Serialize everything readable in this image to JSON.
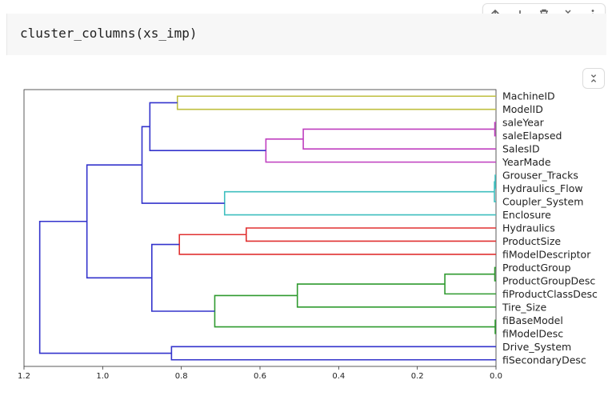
{
  "toolbar": {
    "icons": [
      "arrow-up-icon",
      "arrow-down-icon",
      "trash-icon",
      "collapse-icon",
      "more-vert-icon"
    ]
  },
  "code_cell": {
    "source": "cluster_columns(xs_imp)"
  },
  "chart_data": {
    "type": "dendrogram",
    "orientation": "left",
    "xlim": [
      1.2,
      0.0
    ],
    "xticks": [
      "1.2",
      "1.0",
      "0.8",
      "0.6",
      "0.4",
      "0.2",
      "0.0"
    ],
    "xtick_values": [
      1.2,
      1.0,
      0.8,
      0.6,
      0.4,
      0.2,
      0.0
    ],
    "leaves": [
      "MachineID",
      "ModelID",
      "saleYear",
      "saleElapsed",
      "SalesID",
      "YearMade",
      "Grouser_Tracks",
      "Hydraulics_Flow",
      "Coupler_System",
      "Enclosure",
      "Hydraulics",
      "ProductSize",
      "fiModelDescriptor",
      "ProductGroup",
      "ProductGroupDesc",
      "fiProductClassDesc",
      "Tire_Size",
      "fiBaseModel",
      "fiModelDesc",
      "Drive_System",
      "fiSecondaryDesc"
    ],
    "merges": [
      {
        "a": 0,
        "b": 1,
        "h": 0.81,
        "color": "#bfbf3f"
      },
      {
        "a": 2,
        "b": 3,
        "h": 0.003,
        "color": "#bf3fbf"
      },
      {
        "a": 22,
        "b": 4,
        "h": 0.49,
        "color": "#bf3fbf"
      },
      {
        "a": 23,
        "b": 5,
        "h": 0.585,
        "color": "#bf3fbf"
      },
      {
        "a": 21,
        "b": 24,
        "h": 0.88,
        "color": "#3333cc"
      },
      {
        "a": 6,
        "b": 7,
        "h": 0.002,
        "color": "#3fbfbf"
      },
      {
        "a": 26,
        "b": 8,
        "h": 0.004,
        "color": "#3fbfbf"
      },
      {
        "a": 27,
        "b": 9,
        "h": 0.69,
        "color": "#3fbfbf"
      },
      {
        "a": 25,
        "b": 28,
        "h": 0.9,
        "color": "#3333cc"
      },
      {
        "a": 10,
        "b": 11,
        "h": 0.635,
        "color": "#e03131"
      },
      {
        "a": 30,
        "b": 12,
        "h": 0.805,
        "color": "#e03131"
      },
      {
        "a": 13,
        "b": 14,
        "h": 0.003,
        "color": "#2f9a2f"
      },
      {
        "a": 32,
        "b": 15,
        "h": 0.13,
        "color": "#2f9a2f"
      },
      {
        "a": 33,
        "b": 16,
        "h": 0.505,
        "color": "#2f9a2f"
      },
      {
        "a": 17,
        "b": 18,
        "h": 0.002,
        "color": "#2f9a2f"
      },
      {
        "a": 34,
        "b": 35,
        "h": 0.715,
        "color": "#2f9a2f"
      },
      {
        "a": 31,
        "b": 36,
        "h": 0.875,
        "color": "#3333cc"
      },
      {
        "a": 29,
        "b": 37,
        "h": 1.04,
        "color": "#3333cc"
      },
      {
        "a": 19,
        "b": 20,
        "h": 0.825,
        "color": "#3333cc"
      },
      {
        "a": 38,
        "b": 39,
        "h": 1.16,
        "color": "#3333cc"
      }
    ],
    "grid": false
  }
}
